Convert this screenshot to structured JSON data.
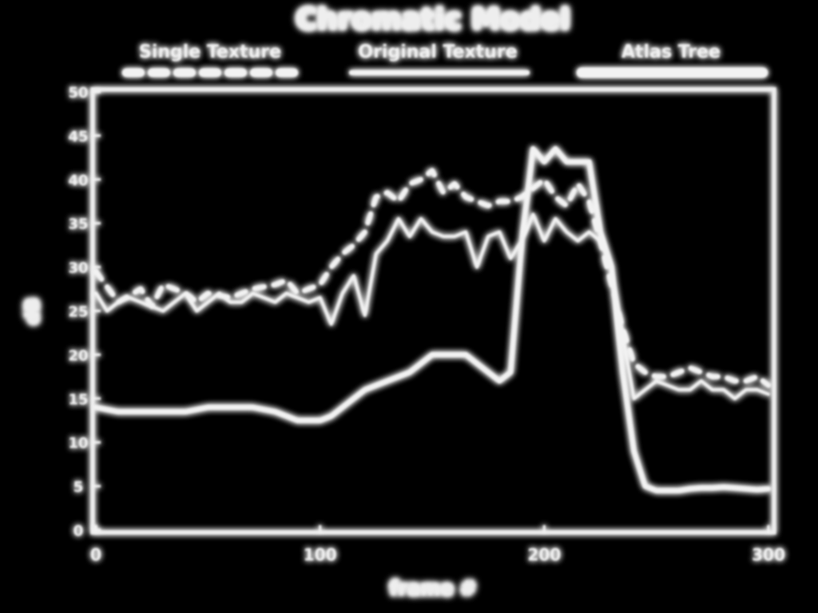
{
  "chart_data": {
    "type": "line",
    "title": "Chromatic Model",
    "xlabel": "frame #",
    "ylabel": "dB",
    "xlim": [
      0,
      300
    ],
    "ylim": [
      0,
      50
    ],
    "xticks": [
      0,
      100,
      200,
      300
    ],
    "yticks": [
      0,
      5,
      10,
      15,
      20,
      25,
      30,
      35,
      40,
      45,
      50
    ],
    "grid": false,
    "legend_position": "top",
    "colors": {
      "background": "#000000",
      "foreground": "#f2f2f2",
      "glow": "#ffffff"
    },
    "series": [
      {
        "name": "Single Texture",
        "style": "dashed",
        "x": [
          0,
          10,
          20,
          25,
          30,
          40,
          45,
          50,
          60,
          65,
          70,
          80,
          85,
          90,
          95,
          100,
          105,
          110,
          115,
          120,
          125,
          130,
          135,
          140,
          145,
          150,
          155,
          160,
          165,
          170,
          175,
          180,
          185,
          190,
          195,
          200,
          205,
          210,
          215,
          220,
          225,
          230,
          235,
          240,
          245,
          250,
          255,
          260,
          265,
          270,
          275,
          280,
          285,
          290,
          295,
          300
        ],
        "y": [
          29.5,
          26,
          27.5,
          25.5,
          28,
          27,
          26,
          27,
          26.5,
          27,
          27.5,
          28,
          28.5,
          27,
          27.5,
          28,
          30,
          31.5,
          32.5,
          34,
          38,
          38.5,
          37.5,
          39.5,
          40,
          41,
          38.5,
          39.5,
          38,
          37.5,
          37,
          37.5,
          37.5,
          38,
          39,
          40,
          38,
          37,
          39.5,
          37.5,
          33,
          28,
          23,
          19,
          18,
          17.5,
          17.5,
          18,
          18.5,
          18,
          17.5,
          17.5,
          17,
          17,
          17.5,
          16.5
        ]
      },
      {
        "name": "Original Texture",
        "style": "solid-thin",
        "x": [
          0,
          5,
          10,
          15,
          20,
          25,
          30,
          35,
          40,
          45,
          50,
          55,
          60,
          65,
          70,
          80,
          85,
          90,
          95,
          100,
          105,
          110,
          115,
          120,
          125,
          130,
          135,
          140,
          145,
          150,
          155,
          160,
          165,
          170,
          175,
          180,
          185,
          190,
          195,
          200,
          205,
          210,
          215,
          220,
          225,
          230,
          235,
          240,
          245,
          250,
          255,
          260,
          265,
          270,
          275,
          280,
          285,
          290,
          295,
          300
        ],
        "y": [
          27,
          25,
          26,
          26.5,
          26,
          25.5,
          25,
          26,
          27,
          25,
          26,
          27,
          26,
          26,
          27,
          26,
          27,
          26.5,
          26,
          26.5,
          23.5,
          27,
          29,
          24.5,
          31.5,
          33,
          35.5,
          33.5,
          35.5,
          34,
          33.5,
          33.5,
          34,
          30,
          33.5,
          34,
          31,
          33,
          36,
          33,
          35.5,
          34,
          33,
          34,
          33,
          30,
          22,
          15,
          16,
          17,
          16.5,
          16,
          16,
          17,
          16,
          16,
          15,
          16,
          16,
          15.5
        ]
      },
      {
        "name": "Atlas Tree",
        "style": "solid-thick",
        "x": [
          0,
          10,
          20,
          30,
          40,
          50,
          60,
          70,
          80,
          90,
          100,
          105,
          110,
          115,
          120,
          125,
          130,
          140,
          145,
          150,
          155,
          160,
          165,
          170,
          175,
          180,
          185,
          190,
          195,
          200,
          205,
          210,
          215,
          220,
          225,
          230,
          235,
          240,
          245,
          250,
          255,
          260,
          265,
          270,
          275,
          280,
          285,
          290,
          295,
          300
        ],
        "y": [
          14,
          13.5,
          13.5,
          13.5,
          13.5,
          14,
          14,
          14,
          13.5,
          12.5,
          12.5,
          13,
          14,
          15,
          16,
          16.5,
          17,
          18,
          19,
          20,
          20,
          20,
          20,
          19,
          18,
          17,
          18,
          33,
          43.5,
          42,
          43.5,
          42,
          42,
          42,
          34,
          30,
          18,
          9,
          5,
          4.5,
          4.5,
          4.5,
          4.7,
          4.8,
          4.8,
          4.9,
          4.8,
          4.7,
          4.6,
          4.7
        ]
      }
    ]
  }
}
